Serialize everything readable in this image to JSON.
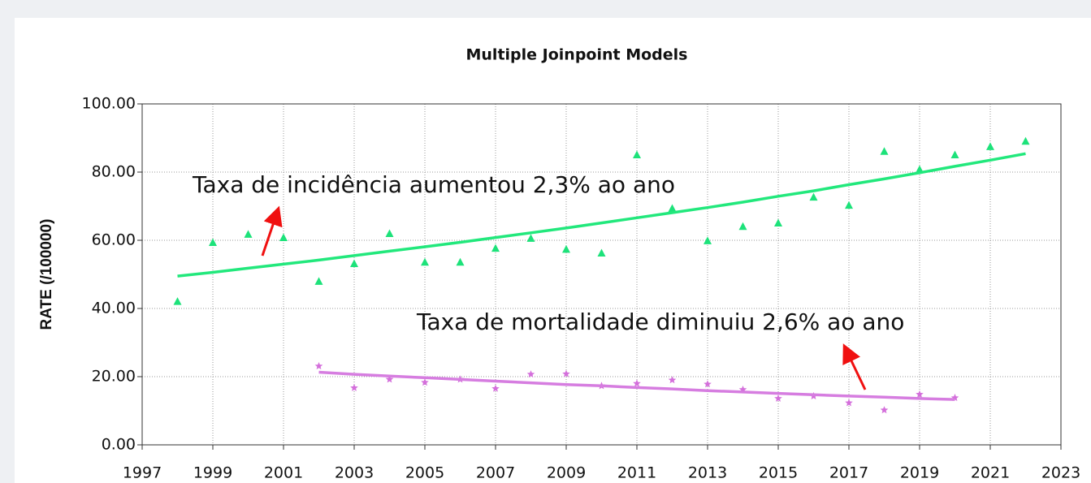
{
  "chart_data": {
    "type": "line",
    "title": "Multiple Joinpoint Models",
    "ylabel": "RATE (/100000)",
    "xlim": [
      1997,
      2023
    ],
    "xticks": [
      1997,
      1999,
      2001,
      2003,
      2005,
      2007,
      2009,
      2011,
      2013,
      2015,
      2017,
      2019,
      2021,
      2023
    ],
    "ylim": [
      0,
      100
    ],
    "yticks": [
      {
        "value": 0,
        "label": "0.00"
      },
      {
        "value": 20,
        "label": "20.00"
      },
      {
        "value": 40,
        "label": "40.00"
      },
      {
        "value": 60,
        "label": "60.00"
      },
      {
        "value": 80,
        "label": "80.00"
      },
      {
        "value": 100,
        "label": "100.00"
      }
    ],
    "grid": true,
    "series": [
      {
        "mode": "markers",
        "marker": "triangle",
        "color": "#1de27a",
        "x": [
          1998,
          1999,
          2000,
          2001,
          2002,
          2003,
          2004,
          2005,
          2006,
          2007,
          2008,
          2009,
          2010,
          2011,
          2012,
          2013,
          2014,
          2015,
          2016,
          2017,
          2018,
          2019,
          2020,
          2021,
          2022
        ],
        "values": [
          42,
          59.3,
          61.7,
          60.7,
          47.9,
          53.1,
          61.9,
          53.5,
          53.5,
          57.6,
          60.5,
          57.3,
          56.2,
          85,
          69.3,
          59.8,
          64,
          65,
          72.6,
          70.2,
          86,
          80.7,
          85,
          87.4,
          89
        ]
      },
      {
        "mode": "line",
        "color": "#22e87c",
        "x": [
          1998,
          1999,
          2000,
          2001,
          2002,
          2003,
          2004,
          2005,
          2006,
          2007,
          2008,
          2009,
          2010,
          2011,
          2012,
          2013,
          2014,
          2015,
          2016,
          2017,
          2018,
          2019,
          2020,
          2021,
          2022
        ],
        "values": [
          49.5,
          50.6,
          51.8,
          53.0,
          54.2,
          55.5,
          56.8,
          58.1,
          59.4,
          60.8,
          62.2,
          63.6,
          65.1,
          66.6,
          68.1,
          69.6,
          71.2,
          72.9,
          74.5,
          76.3,
          78.0,
          79.8,
          81.7,
          83.5,
          85.4
        ]
      },
      {
        "mode": "markers",
        "marker": "star",
        "color": "#d46fdb",
        "x": [
          2002,
          2003,
          2004,
          2005,
          2006,
          2007,
          2008,
          2009,
          2010,
          2011,
          2012,
          2013,
          2014,
          2015,
          2016,
          2017,
          2018,
          2019,
          2020
        ],
        "values": [
          23.1,
          16.7,
          19.2,
          18.3,
          19.2,
          16.5,
          20.7,
          20.8,
          17.3,
          18,
          19,
          17.8,
          16.2,
          13.6,
          14.3,
          12.3,
          10.2,
          14.8,
          13.8
        ]
      },
      {
        "mode": "line",
        "color": "#d67de0",
        "x": [
          2002,
          2003,
          2004,
          2005,
          2006,
          2007,
          2008,
          2009,
          2010,
          2011,
          2012,
          2013,
          2014,
          2015,
          2016,
          2017,
          2018,
          2019,
          2020
        ],
        "values": [
          21.3,
          20.7,
          20.2,
          19.7,
          19.2,
          18.7,
          18.2,
          17.7,
          17.3,
          16.8,
          16.4,
          15.9,
          15.5,
          15.1,
          14.7,
          14.3,
          14.0,
          13.6,
          13.3
        ]
      }
    ],
    "annotations": [
      "Taxa de incidência aumentou 2,3% ao ano",
      "Taxa de mortalidade diminuiu 2,6% ao ano"
    ]
  }
}
